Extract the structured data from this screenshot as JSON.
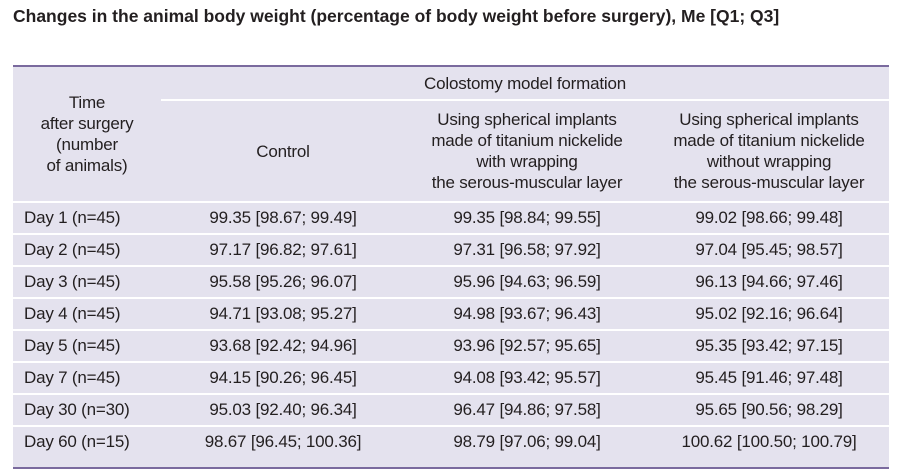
{
  "title": "Changes in the animal body weight (percentage of body weight before surgery), Me [Q1; Q3]",
  "header": {
    "time_col": [
      "Time",
      "after surgery",
      "(number",
      "of animals)"
    ],
    "group_label": "Colostomy model formation",
    "control_label": "Control",
    "with_wrapping": [
      "Using spherical implants",
      "made of titanium nickelide",
      "with wrapping",
      "the serous-muscular layer"
    ],
    "without_wrapping": [
      "Using spherical implants",
      "made of titanium nickelide",
      "without wrapping",
      "the serous-muscular layer"
    ]
  },
  "rows": [
    {
      "day": "Day 1 (n=45)",
      "control": "99.35 [98.67; 99.49]",
      "with": "99.35 [98.84; 99.55]",
      "without": "99.02 [98.66; 99.48]"
    },
    {
      "day": "Day 2 (n=45)",
      "control": "97.17 [96.82; 97.61]",
      "with": "97.31 [96.58; 97.92]",
      "without": "97.04 [95.45; 98.57]"
    },
    {
      "day": "Day 3 (n=45)",
      "control": "95.58 [95.26; 96.07]",
      "with": "95.96 [94.63; 96.59]",
      "without": "96.13 [94.66; 97.46]"
    },
    {
      "day": "Day 4 (n=45)",
      "control": "94.71 [93.08; 95.27]",
      "with": "94.98 [93.67; 96.43]",
      "without": "95.02 [92.16; 96.64]"
    },
    {
      "day": "Day 5 (n=45)",
      "control": "93.68 [92.42; 94.96]",
      "with": "93.96 [92.57; 95.65]",
      "without": "95.35 [93.42; 97.15]"
    },
    {
      "day": "Day 7 (n=45)",
      "control": "94.15 [90.26; 96.45]",
      "with": "94.08 [93.42; 95.57]",
      "without": "95.45 [91.46; 97.48]"
    },
    {
      "day": "Day 30 (n=30)",
      "control": "95.03 [92.40; 96.34]",
      "with": "96.47 [94.86; 97.58]",
      "without": "95.65 [90.56; 98.29]"
    },
    {
      "day": "Day 60 (n=15)",
      "control": "98.67 [96.45; 100.36]",
      "with": "98.79 [97.06; 99.04]",
      "without": "100.62 [100.50; 100.79]"
    }
  ]
}
